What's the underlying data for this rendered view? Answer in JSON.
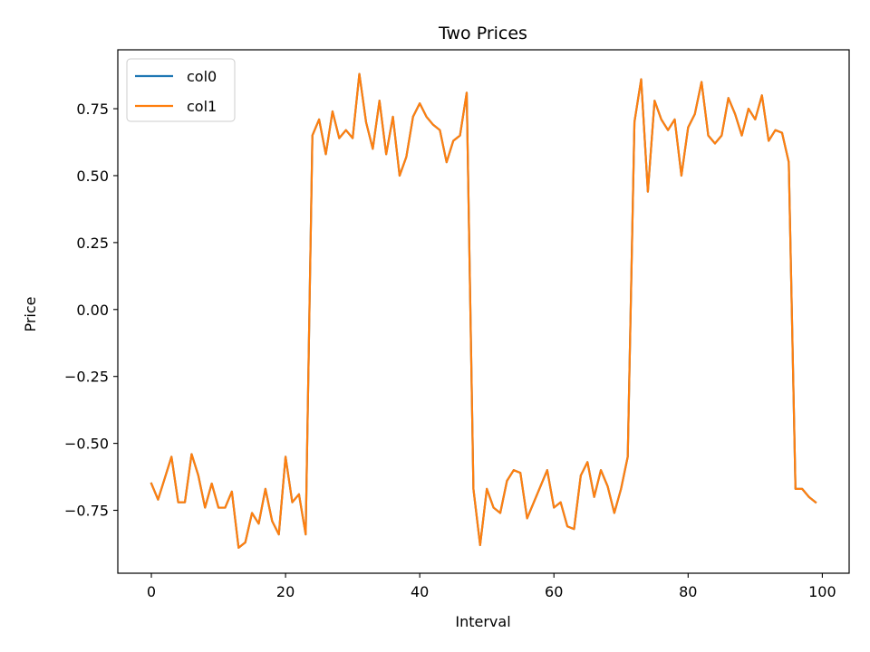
{
  "chart_data": {
    "type": "line",
    "title": "Two Prices",
    "xlabel": "Interval",
    "ylabel": "Price",
    "xlim": [
      -5,
      104
    ],
    "ylim": [
      -0.985,
      0.97
    ],
    "xticks": [
      0,
      20,
      40,
      60,
      80,
      100
    ],
    "xtick_labels": [
      "0",
      "20",
      "40",
      "60",
      "80",
      "100"
    ],
    "yticks": [
      -0.75,
      -0.5,
      -0.25,
      0.0,
      0.25,
      0.5,
      0.75
    ],
    "ytick_labels": [
      "−0.75",
      "−0.50",
      "−0.25",
      "0.00",
      "0.25",
      "0.50",
      "0.75"
    ],
    "grid": false,
    "legend_position": "upper-left",
    "x": [
      0,
      1,
      2,
      3,
      4,
      5,
      6,
      7,
      8,
      9,
      10,
      11,
      12,
      13,
      14,
      15,
      16,
      17,
      18,
      19,
      20,
      21,
      22,
      23,
      24,
      25,
      26,
      27,
      28,
      29,
      30,
      31,
      32,
      33,
      34,
      35,
      36,
      37,
      38,
      39,
      40,
      41,
      42,
      43,
      44,
      45,
      46,
      47,
      48,
      49,
      50,
      51,
      52,
      53,
      54,
      55,
      56,
      57,
      58,
      59,
      60,
      61,
      62,
      63,
      64,
      65,
      66,
      67,
      68,
      69,
      70,
      71,
      72,
      73,
      74,
      75,
      76,
      77,
      78,
      79,
      80,
      81,
      82,
      83,
      84,
      85,
      86,
      87,
      88,
      89,
      90,
      91,
      92,
      93,
      94,
      95,
      96,
      97,
      98,
      99
    ],
    "series": [
      {
        "name": "col0",
        "color": "#1f77b4",
        "values": [
          -0.65,
          -0.71,
          -0.63,
          -0.55,
          -0.72,
          -0.72,
          -0.54,
          -0.62,
          -0.74,
          -0.65,
          -0.74,
          -0.74,
          -0.68,
          -0.89,
          -0.87,
          -0.76,
          -0.8,
          -0.67,
          -0.79,
          -0.84,
          -0.55,
          -0.72,
          -0.69,
          -0.84,
          0.65,
          0.71,
          0.58,
          0.74,
          0.64,
          0.67,
          0.64,
          0.88,
          0.7,
          0.6,
          0.78,
          0.58,
          0.72,
          0.5,
          0.57,
          0.72,
          0.77,
          0.72,
          0.69,
          0.67,
          0.55,
          0.63,
          0.65,
          0.81,
          -0.67,
          -0.88,
          -0.67,
          -0.74,
          -0.76,
          -0.64,
          -0.6,
          -0.61,
          -0.78,
          -0.72,
          -0.66,
          -0.6,
          -0.74,
          -0.72,
          -0.81,
          -0.82,
          -0.62,
          -0.57,
          -0.7,
          -0.6,
          -0.66,
          -0.76,
          -0.67,
          -0.55,
          0.7,
          0.86,
          0.44,
          0.78,
          0.71,
          0.67,
          0.71,
          0.5,
          0.68,
          0.73,
          0.85,
          0.65,
          0.62,
          0.65,
          0.79,
          0.73,
          0.65,
          0.75,
          0.71,
          0.8,
          0.63,
          0.67,
          0.66,
          0.55,
          -0.67,
          -0.67,
          -0.7,
          -0.72
        ]
      },
      {
        "name": "col1",
        "color": "#ff7f0e",
        "values": [
          -0.65,
          -0.71,
          -0.63,
          -0.55,
          -0.72,
          -0.72,
          -0.54,
          -0.62,
          -0.74,
          -0.65,
          -0.74,
          -0.74,
          -0.68,
          -0.89,
          -0.87,
          -0.76,
          -0.8,
          -0.67,
          -0.79,
          -0.84,
          -0.55,
          -0.72,
          -0.69,
          -0.84,
          0.65,
          0.71,
          0.58,
          0.74,
          0.64,
          0.67,
          0.64,
          0.88,
          0.7,
          0.6,
          0.78,
          0.58,
          0.72,
          0.5,
          0.57,
          0.72,
          0.77,
          0.72,
          0.69,
          0.67,
          0.55,
          0.63,
          0.65,
          0.81,
          -0.67,
          -0.88,
          -0.67,
          -0.74,
          -0.76,
          -0.64,
          -0.6,
          -0.61,
          -0.78,
          -0.72,
          -0.66,
          -0.6,
          -0.74,
          -0.72,
          -0.81,
          -0.82,
          -0.62,
          -0.57,
          -0.7,
          -0.6,
          -0.66,
          -0.76,
          -0.67,
          -0.55,
          0.7,
          0.86,
          0.44,
          0.78,
          0.71,
          0.67,
          0.71,
          0.5,
          0.68,
          0.73,
          0.85,
          0.65,
          0.62,
          0.65,
          0.79,
          0.73,
          0.65,
          0.75,
          0.71,
          0.8,
          0.63,
          0.67,
          0.66,
          0.55,
          -0.67,
          -0.67,
          -0.7,
          -0.72
        ]
      }
    ]
  }
}
